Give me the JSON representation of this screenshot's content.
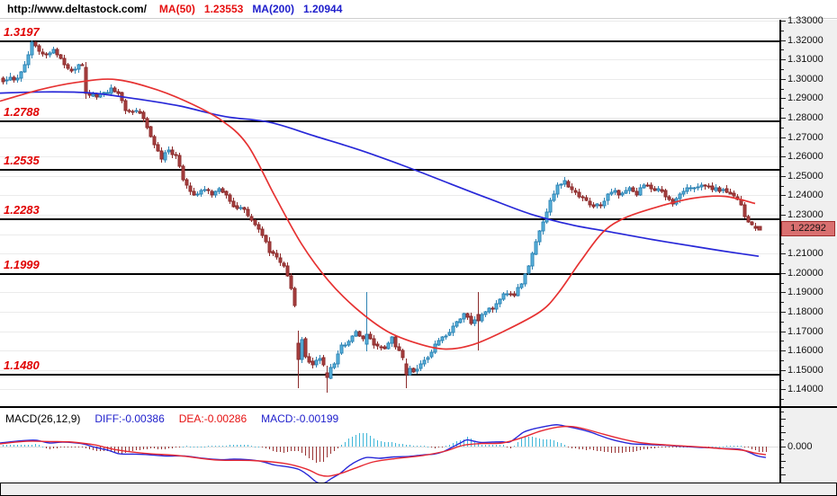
{
  "header": {
    "url": "http://www.deltastock.com/",
    "ma50_label": "MA(50)",
    "ma50_value": "1.23553",
    "ma200_label": "MA(200)",
    "ma200_value": "1.20944"
  },
  "macd_header": {
    "title": "MACD(26,12,9)",
    "diff_label": "DIFF:-0.00386",
    "dea_label": "DEA:-0.00286",
    "macd_label": "MACD:-0.00199"
  },
  "colors": {
    "bull_fill": "#58b2dc",
    "bull_stroke": "#2f84b4",
    "bear_fill": "#a84040",
    "bear_stroke": "#8c2c2c",
    "ma50": "#e63232",
    "ma200": "#2828d8",
    "level_line": "#000000",
    "level_text": "#e00000",
    "grid": "#ebebeb",
    "macd_zero": "#dddddd",
    "axis_bg": "#f0f0f0",
    "badge_bg": "#d97070",
    "badge_border": "#9c2c2c",
    "hist_pos": "#3fb6d8",
    "hist_neg": "#993333",
    "diff_line": "#2828d8",
    "dea_line": "#e62832",
    "header_red": "#e61010",
    "header_blue": "#2020cc"
  },
  "chart_data": {
    "type": "candlestick",
    "title": "Daily candlestick chart with MA(50), MA(200), horizontal support/resistance levels and MACD(26,12,9)",
    "y_axis": {
      "min": 1.14,
      "max": 1.33,
      "step": 0.01,
      "tick_labels": [
        [
          "1.33000",
          1.33
        ],
        [
          "1.32000",
          1.32
        ],
        [
          "1.31000",
          1.31
        ],
        [
          "1.30000",
          1.3
        ],
        [
          "1.29000",
          1.29
        ],
        [
          "1.28000",
          1.28
        ],
        [
          "1.27000",
          1.27
        ],
        [
          "1.26000",
          1.26
        ],
        [
          "1.25000",
          1.25
        ],
        [
          "1.24000",
          1.24
        ],
        [
          "1.23000",
          1.23
        ],
        [
          "1.21000",
          1.21
        ],
        [
          "1.20000",
          1.2
        ],
        [
          "1.19000",
          1.19
        ],
        [
          "1.18000",
          1.18
        ],
        [
          "1.17000",
          1.17
        ],
        [
          "1.16000",
          1.16
        ],
        [
          "1.15000",
          1.15
        ],
        [
          "1.14000",
          1.14
        ]
      ],
      "current_price": 1.22292,
      "current_price_label": "1.22292"
    },
    "levels": [
      {
        "label": "1.3197",
        "price": 1.3197
      },
      {
        "label": "1.2788",
        "price": 1.2788
      },
      {
        "label": "1.2535",
        "price": 1.2535
      },
      {
        "label": "1.2283",
        "price": 1.2283
      },
      {
        "label": "1.1999",
        "price": 1.1999
      },
      {
        "label": "1.1480",
        "price": 1.148
      }
    ],
    "candles": {
      "count": 210,
      "close_keypoints": [
        [
          3,
          1.2985
        ],
        [
          11,
          1.3015
        ],
        [
          19,
          1.2995
        ],
        [
          27,
          1.308
        ],
        [
          35,
          1.3185
        ],
        [
          43,
          1.315
        ],
        [
          51,
          1.3125
        ],
        [
          59,
          1.3155
        ],
        [
          67,
          1.311
        ],
        [
          75,
          1.305
        ],
        [
          83,
          1.3055
        ],
        [
          91,
          1.3078
        ],
        [
          99,
          1.292
        ],
        [
          107,
          1.2912
        ],
        [
          115,
          1.2932
        ],
        [
          123,
          1.2945
        ],
        [
          131,
          1.2925
        ],
        [
          139,
          1.2845
        ],
        [
          147,
          1.2828
        ],
        [
          155,
          1.2822
        ],
        [
          163,
          1.276
        ],
        [
          171,
          1.265
        ],
        [
          179,
          1.2595
        ],
        [
          187,
          1.2625
        ],
        [
          195,
          1.26
        ],
        [
          203,
          1.249
        ],
        [
          211,
          1.242
        ],
        [
          219,
          1.2405
        ],
        [
          227,
          1.2425
        ],
        [
          235,
          1.2405
        ],
        [
          243,
          1.2425
        ],
        [
          251,
          1.2395
        ],
        [
          259,
          1.234
        ],
        [
          267,
          1.233
        ],
        [
          275,
          1.2305
        ],
        [
          283,
          1.2255
        ],
        [
          291,
          1.2195
        ],
        [
          299,
          1.211
        ],
        [
          307,
          1.2075
        ],
        [
          315,
          1.204
        ],
        [
          323,
          1.192
        ],
        [
          331,
          1.175
        ],
        [
          339,
          1.156
        ],
        [
          347,
          1.153
        ],
        [
          355,
          1.1565
        ],
        [
          363,
          1.148
        ],
        [
          371,
          1.154
        ],
        [
          379,
          1.1625
        ],
        [
          387,
          1.1655
        ],
        [
          395,
          1.169
        ],
        [
          403,
          1.167
        ],
        [
          411,
          1.1655
        ],
        [
          419,
          1.162
        ],
        [
          427,
          1.16
        ],
        [
          435,
          1.1665
        ],
        [
          443,
          1.159
        ],
        [
          451,
          1.152
        ],
        [
          459,
          1.1495
        ],
        [
          467,
          1.153
        ],
        [
          475,
          1.157
        ],
        [
          483,
          1.1625
        ],
        [
          491,
          1.1665
        ],
        [
          499,
          1.1705
        ],
        [
          507,
          1.1755
        ],
        [
          515,
          1.1785
        ],
        [
          523,
          1.1745
        ],
        [
          531,
          1.177
        ],
        [
          539,
          1.179
        ],
        [
          547,
          1.1825
        ],
        [
          555,
          1.187
        ],
        [
          563,
          1.1905
        ],
        [
          571,
          1.1885
        ],
        [
          579,
          1.195
        ],
        [
          587,
          1.204
        ],
        [
          595,
          1.216
        ],
        [
          603,
          1.227
        ],
        [
          611,
          1.237
        ],
        [
          619,
          1.245
        ],
        [
          627,
          1.2465
        ],
        [
          635,
          1.242
        ],
        [
          643,
          1.2405
        ],
        [
          651,
          1.238
        ],
        [
          659,
          1.2335
        ],
        [
          667,
          1.2355
        ],
        [
          675,
          1.24
        ],
        [
          683,
          1.242
        ],
        [
          691,
          1.2405
        ],
        [
          699,
          1.244
        ],
        [
          707,
          1.241
        ],
        [
          715,
          1.246
        ],
        [
          723,
          1.2425
        ],
        [
          731,
          1.244
        ],
        [
          739,
          1.2385
        ],
        [
          747,
          1.2355
        ],
        [
          755,
          1.24
        ],
        [
          763,
          1.244
        ],
        [
          771,
          1.243
        ],
        [
          779,
          1.2455
        ],
        [
          787,
          1.244
        ],
        [
          795,
          1.243
        ],
        [
          803,
          1.2425
        ],
        [
          811,
          1.241
        ],
        [
          819,
          1.239
        ],
        [
          827,
          1.229
        ],
        [
          835,
          1.2245
        ],
        [
          839,
          1.2229
        ]
      ],
      "overrides": {
        "23": [
          1.306,
          1.2925,
          1.3085,
          1.2895
        ],
        "82": [
          1.164,
          1.1555,
          1.1705,
          1.1405
        ],
        "90": [
          1.1485,
          1.1462,
          1.152,
          1.1385
        ],
        "101": [
          1.1635,
          1.1685,
          1.19,
          1.1595
        ],
        "112": [
          1.153,
          1.1478,
          1.156,
          1.1408
        ],
        "132": [
          1.1788,
          1.1752,
          1.19,
          1.16
        ],
        "209": [
          1.2238,
          1.2229,
          1.2258,
          1.2215
        ]
      }
    },
    "ma50": {
      "name": "MA(50)",
      "last_value": 1.23553,
      "keypoints": [
        [
          0,
          1.2885
        ],
        [
          45,
          1.2945
        ],
        [
          85,
          1.2982
        ],
        [
          125,
          1.2998
        ],
        [
          165,
          1.2958
        ],
        [
          205,
          1.2888
        ],
        [
          245,
          1.279
        ],
        [
          275,
          1.266
        ],
        [
          305,
          1.24
        ],
        [
          335,
          1.215
        ],
        [
          365,
          1.196
        ],
        [
          395,
          1.182
        ],
        [
          430,
          1.17
        ],
        [
          465,
          1.1635
        ],
        [
          495,
          1.1608
        ],
        [
          525,
          1.163
        ],
        [
          560,
          1.17
        ],
        [
          600,
          1.18
        ],
        [
          620,
          1.1895
        ],
        [
          645,
          1.206
        ],
        [
          670,
          1.221
        ],
        [
          695,
          1.2285
        ],
        [
          730,
          1.234
        ],
        [
          770,
          1.2385
        ],
        [
          805,
          1.2395
        ],
        [
          839,
          1.2358
        ]
      ]
    },
    "ma200": {
      "name": "MA(200)",
      "last_value": 1.20944,
      "keypoints": [
        [
          0,
          1.2927
        ],
        [
          50,
          1.2933
        ],
        [
          100,
          1.2928
        ],
        [
          150,
          1.2898
        ],
        [
          200,
          1.286
        ],
        [
          250,
          1.2806
        ],
        [
          300,
          1.2776
        ],
        [
          350,
          1.2705
        ],
        [
          400,
          1.2633
        ],
        [
          450,
          1.255
        ],
        [
          500,
          1.246
        ],
        [
          545,
          1.238
        ],
        [
          590,
          1.2303
        ],
        [
          635,
          1.2248
        ],
        [
          680,
          1.221
        ],
        [
          725,
          1.2172
        ],
        [
          770,
          1.2138
        ],
        [
          805,
          1.2112
        ],
        [
          843,
          1.2086
        ]
      ]
    },
    "macd": {
      "params": "MACD(26,12,9)",
      "diff_last": -0.00386,
      "dea_last": -0.00286,
      "macd_last": -0.00199,
      "zero_label": "0.000",
      "hist_rule": "2*(diff-dea)",
      "diff_keypoints": [
        [
          0,
          0.0013
        ],
        [
          25,
          0.0021
        ],
        [
          40,
          0.0023
        ],
        [
          55,
          0.0013
        ],
        [
          70,
          0.0016
        ],
        [
          90,
          0.0011
        ],
        [
          105,
          -0.0002
        ],
        [
          120,
          -0.0013
        ],
        [
          133,
          -0.0026
        ],
        [
          150,
          -0.0027
        ],
        [
          165,
          -0.0029
        ],
        [
          185,
          -0.0034
        ],
        [
          205,
          -0.0034
        ],
        [
          225,
          -0.0042
        ],
        [
          245,
          -0.0047
        ],
        [
          260,
          -0.0045
        ],
        [
          275,
          -0.0047
        ],
        [
          290,
          -0.0053
        ],
        [
          305,
          -0.0066
        ],
        [
          320,
          -0.0073
        ],
        [
          332,
          -0.0082
        ],
        [
          342,
          -0.0102
        ],
        [
          352,
          -0.0128
        ],
        [
          360,
          -0.0131
        ],
        [
          368,
          -0.0115
        ],
        [
          378,
          -0.0096
        ],
        [
          388,
          -0.0069
        ],
        [
          398,
          -0.005
        ],
        [
          408,
          -0.0039
        ],
        [
          422,
          -0.0042
        ],
        [
          438,
          -0.0037
        ],
        [
          455,
          -0.0035
        ],
        [
          470,
          -0.003
        ],
        [
          482,
          -0.0027
        ],
        [
          492,
          -0.0019
        ],
        [
          502,
          -0.0003
        ],
        [
          512,
          0.0014
        ],
        [
          519,
          0.0024
        ],
        [
          527,
          0.0019
        ],
        [
          535,
          0.0015
        ],
        [
          547,
          0.0016
        ],
        [
          558,
          0.0017
        ],
        [
          566,
          0.0016
        ],
        [
          574,
          0.0033
        ],
        [
          582,
          0.0052
        ],
        [
          592,
          0.0063
        ],
        [
          602,
          0.007
        ],
        [
          612,
          0.0076
        ],
        [
          620,
          0.0078
        ],
        [
          630,
          0.0072
        ],
        [
          642,
          0.0064
        ],
        [
          655,
          0.0053
        ],
        [
          667,
          0.0039
        ],
        [
          679,
          0.0026
        ],
        [
          689,
          0.0018
        ],
        [
          702,
          0.001
        ],
        [
          714,
          0.0008
        ],
        [
          727,
          0.0006
        ],
        [
          739,
          0.0005
        ],
        [
          752,
          0.0002
        ],
        [
          764,
          0
        ],
        [
          777,
          -0.0003
        ],
        [
          789,
          -0.0004
        ],
        [
          802,
          -0.0007
        ],
        [
          814,
          -0.0008
        ],
        [
          824,
          -0.0011
        ],
        [
          834,
          -0.0023
        ],
        [
          842,
          -0.0034
        ],
        [
          851,
          -0.0039
        ]
      ],
      "dea_keypoints": [
        [
          0,
          0.001
        ],
        [
          30,
          0.0019
        ],
        [
          55,
          0.0018
        ],
        [
          80,
          0.0016
        ],
        [
          105,
          0.0006
        ],
        [
          130,
          -0.0012
        ],
        [
          160,
          -0.0024
        ],
        [
          200,
          -0.0033
        ],
        [
          240,
          -0.0048
        ],
        [
          280,
          -0.005
        ],
        [
          315,
          -0.006
        ],
        [
          340,
          -0.008
        ],
        [
          355,
          -0.0102
        ],
        [
          365,
          -0.0106
        ],
        [
          378,
          -0.0097
        ],
        [
          395,
          -0.0077
        ],
        [
          415,
          -0.0055
        ],
        [
          440,
          -0.0043
        ],
        [
          470,
          -0.0032
        ],
        [
          495,
          -0.0016
        ],
        [
          515,
          0.0005
        ],
        [
          535,
          0.0011
        ],
        [
          558,
          0.0013
        ],
        [
          580,
          0.0032
        ],
        [
          600,
          0.0055
        ],
        [
          620,
          0.007
        ],
        [
          635,
          0.0072
        ],
        [
          650,
          0.0063
        ],
        [
          670,
          0.0045
        ],
        [
          690,
          0.0028
        ],
        [
          710,
          0.0015
        ],
        [
          730,
          0.0008
        ],
        [
          755,
          0.0003
        ],
        [
          780,
          -0.0002
        ],
        [
          805,
          -0.0008
        ],
        [
          825,
          -0.0013
        ],
        [
          840,
          -0.0024
        ],
        [
          851,
          -0.0029
        ]
      ]
    }
  }
}
